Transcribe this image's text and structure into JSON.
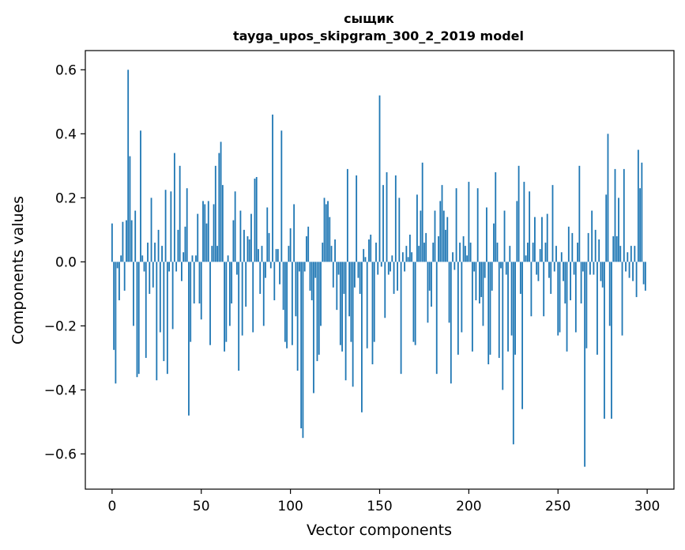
{
  "chart_data": {
    "type": "bar",
    "title": "сыщик",
    "subtitle": "tayga_upos_skipgram_300_2_2019 model",
    "xlabel": "Vector components",
    "ylabel": "Components values",
    "xlim": [
      -15,
      315
    ],
    "ylim": [
      -0.71,
      0.66
    ],
    "xticks": [
      0,
      50,
      100,
      150,
      200,
      250,
      300
    ],
    "yticks": [
      -0.6,
      -0.4,
      -0.2,
      0.0,
      0.2,
      0.4,
      0.6
    ],
    "xtick_labels": [
      "0",
      "50",
      "100",
      "150",
      "200",
      "250",
      "300"
    ],
    "ytick_labels": [
      "−0.6",
      "−0.4",
      "−0.2",
      "0.0",
      "0.2",
      "0.4",
      "0.6"
    ],
    "bar_color": "#1f77b4",
    "values": [
      0.12,
      -0.275,
      -0.38,
      -0.02,
      -0.12,
      0.02,
      0.125,
      -0.09,
      0.13,
      0.6,
      0.33,
      0.13,
      -0.2,
      0.16,
      -0.36,
      -0.35,
      0.41,
      0.02,
      -0.03,
      -0.3,
      0.06,
      -0.1,
      0.2,
      -0.08,
      0.06,
      -0.37,
      0.1,
      -0.22,
      0.05,
      -0.31,
      0.225,
      -0.35,
      -0.03,
      0.22,
      -0.21,
      0.34,
      -0.03,
      0.1,
      0.3,
      -0.06,
      0.03,
      0.11,
      0.23,
      -0.48,
      -0.25,
      0.02,
      -0.13,
      0.02,
      0.15,
      -0.13,
      -0.18,
      0.19,
      0.18,
      0.12,
      0.19,
      -0.26,
      0.05,
      0.18,
      0.3,
      0.05,
      0.34,
      0.375,
      0.24,
      -0.28,
      -0.25,
      0.02,
      -0.2,
      -0.13,
      0.13,
      0.22,
      -0.04,
      -0.34,
      0.16,
      -0.23,
      0.1,
      -0.14,
      0.08,
      0.07,
      0.15,
      -0.22,
      0.26,
      0.265,
      0.04,
      -0.1,
      0.05,
      -0.2,
      -0.05,
      0.17,
      0.09,
      -0.02,
      0.46,
      -0.12,
      0.04,
      0.04,
      -0.07,
      0.41,
      -0.15,
      -0.25,
      -0.27,
      0.05,
      0.105,
      -0.26,
      0.18,
      -0.17,
      -0.34,
      -0.03,
      -0.52,
      -0.55,
      -0.03,
      0.08,
      0.11,
      -0.09,
      -0.12,
      -0.41,
      -0.05,
      -0.31,
      -0.29,
      -0.2,
      0.06,
      0.2,
      0.18,
      0.19,
      0.14,
      0.05,
      -0.08,
      0.07,
      -0.15,
      -0.04,
      -0.26,
      -0.28,
      -0.1,
      -0.37,
      0.29,
      -0.17,
      -0.25,
      -0.39,
      -0.08,
      0.27,
      -0.05,
      -0.1,
      -0.47,
      0.04,
      0.015,
      -0.27,
      0.07,
      0.085,
      -0.32,
      -0.25,
      0.06,
      -0.04,
      0.52,
      -0.015,
      0.24,
      -0.175,
      0.28,
      -0.04,
      -0.03,
      0.02,
      -0.1,
      0.27,
      -0.09,
      0.2,
      -0.35,
      0.03,
      -0.03,
      0.05,
      0.015,
      0.085,
      0.03,
      -0.25,
      -0.26,
      0.21,
      0.05,
      0.16,
      0.31,
      0.06,
      0.09,
      -0.19,
      -0.09,
      -0.14,
      0.06,
      0.16,
      -0.35,
      0.08,
      0.19,
      0.24,
      0.16,
      0.1,
      0.14,
      -0.19,
      -0.38,
      0.03,
      -0.025,
      0.23,
      -0.29,
      0.06,
      -0.22,
      0.08,
      0.05,
      0.02,
      0.25,
      0.06,
      -0.28,
      -0.03,
      -0.12,
      0.23,
      -0.13,
      -0.11,
      -0.2,
      -0.05,
      0.17,
      -0.32,
      -0.29,
      -0.09,
      0.12,
      0.28,
      0.06,
      -0.3,
      -0.02,
      -0.4,
      0.16,
      -0.04,
      -0.28,
      0.05,
      -0.23,
      -0.57,
      -0.29,
      0.19,
      0.3,
      -0.1,
      -0.46,
      0.25,
      0.02,
      0.06,
      0.22,
      -0.17,
      0.06,
      0.14,
      -0.04,
      -0.06,
      0.04,
      0.14,
      -0.17,
      0.06,
      0.15,
      -0.05,
      -0.1,
      0.24,
      -0.03,
      0.05,
      -0.23,
      -0.22,
      0.03,
      -0.06,
      -0.13,
      -0.28,
      0.11,
      -0.12,
      0.09,
      -0.04,
      -0.22,
      0.06,
      0.3,
      -0.13,
      -0.03,
      -0.64,
      -0.27,
      0.09,
      -0.04,
      0.16,
      -0.04,
      0.1,
      -0.29,
      0.07,
      -0.06,
      -0.08,
      -0.49,
      0.21,
      0.4,
      -0.2,
      -0.49,
      0.08,
      0.29,
      0.08,
      0.2,
      0.05,
      -0.23,
      0.29,
      -0.03,
      0.03,
      -0.05,
      0.05,
      -0.06,
      0.05,
      -0.11,
      0.35,
      0.23,
      0.31,
      -0.07,
      -0.09
    ]
  }
}
